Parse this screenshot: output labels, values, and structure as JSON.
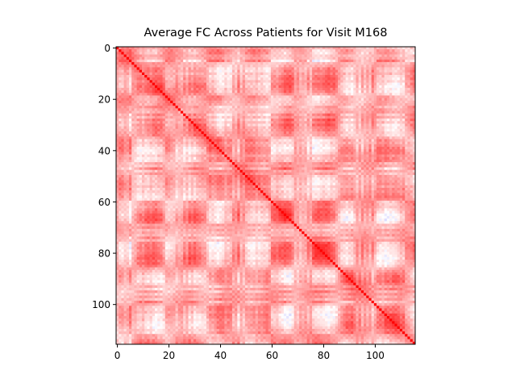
{
  "chart_data": {
    "type": "heatmap",
    "title": "Average FC Across Patients for Visit M168",
    "xlabel": "",
    "ylabel": "",
    "matrix_size": 116,
    "xlim": [
      -0.5,
      115.5
    ],
    "ylim": [
      115.5,
      -0.5
    ],
    "x_ticks": [
      0,
      20,
      40,
      60,
      80,
      100
    ],
    "y_ticks": [
      0,
      20,
      40,
      60,
      80,
      100
    ],
    "colormap": "bwr",
    "value_range": [
      -1,
      1
    ],
    "diagonal_value": 1,
    "grid": false,
    "legend": "none",
    "colors": {
      "negative": "#0000ff",
      "neutral": "#ffffff",
      "positive": "#ff0000"
    }
  }
}
